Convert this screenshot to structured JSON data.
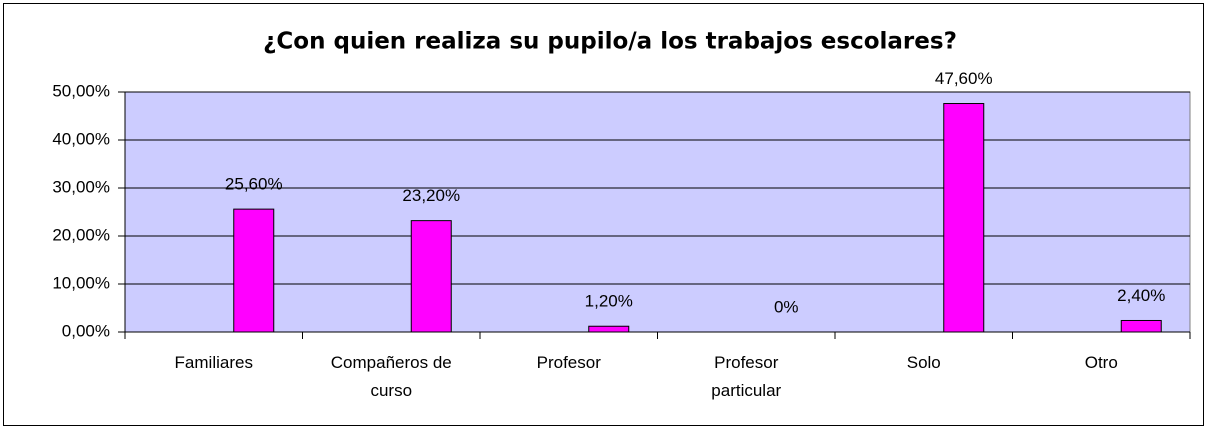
{
  "chart_data": {
    "type": "bar",
    "title": "¿Con quien realiza su pupilo/a los trabajos escolares?",
    "categories": [
      "Familiares",
      "Compañeros de curso",
      "Profesor",
      "Profesor particular",
      "Solo",
      "Otro"
    ],
    "values": [
      25.6,
      23.2,
      1.2,
      0,
      47.6,
      2.4
    ],
    "value_labels": [
      "25,60%",
      "23,20%",
      "1,20%",
      "0%",
      "47,60%",
      "2,40%"
    ],
    "color": "#ff00ff",
    "ylim": [
      0,
      50
    ],
    "yticks": [
      {
        "value": 0,
        "label": "0,00%"
      },
      {
        "value": 10,
        "label": "10,00%"
      },
      {
        "value": 20,
        "label": "20,00%"
      },
      {
        "value": 30,
        "label": "30,00%"
      },
      {
        "value": 40,
        "label": "40,00%"
      },
      {
        "value": 50,
        "label": "50,00%"
      }
    ],
    "grid": true
  }
}
